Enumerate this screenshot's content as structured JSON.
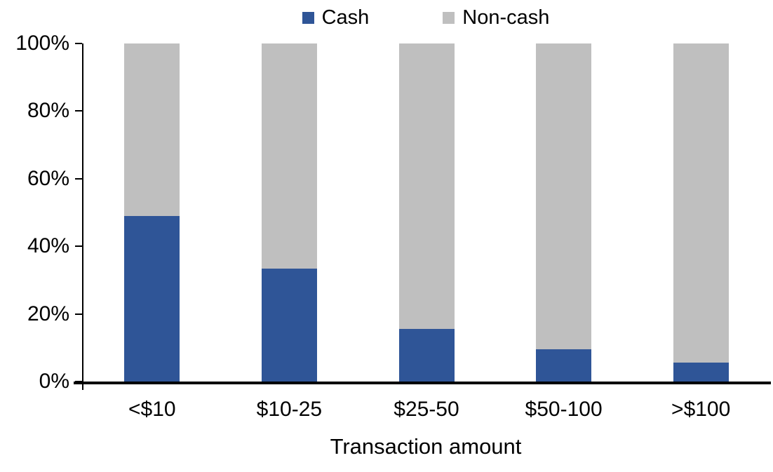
{
  "chart_data": {
    "type": "bar",
    "stacked": true,
    "percent_stacked": true,
    "title": "",
    "xlabel": "Transaction amount",
    "ylabel": "",
    "categories": [
      "<$10",
      "$10-25",
      "$25-50",
      "$50-100",
      ">$100"
    ],
    "series": [
      {
        "name": "Cash",
        "color": "#2F5597",
        "values": [
          49,
          33.5,
          15.5,
          9.5,
          5.5
        ]
      },
      {
        "name": "Non-cash",
        "color": "#BFBFBF",
        "values": [
          51,
          66.5,
          84.5,
          90.5,
          94.5
        ]
      }
    ],
    "ylim": [
      0,
      100
    ],
    "y_tick_labels": [
      "0%",
      "20%",
      "40%",
      "60%",
      "80%",
      "100%"
    ],
    "grid": false,
    "legend_position": "top"
  }
}
